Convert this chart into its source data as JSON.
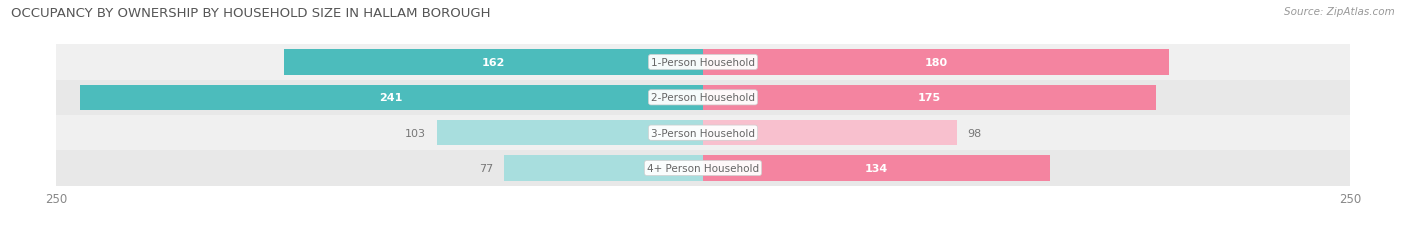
{
  "title": "OCCUPANCY BY OWNERSHIP BY HOUSEHOLD SIZE IN HALLAM BOROUGH",
  "source": "Source: ZipAtlas.com",
  "categories": [
    "1-Person Household",
    "2-Person Household",
    "3-Person Household",
    "4+ Person Household"
  ],
  "owner_values": [
    162,
    241,
    103,
    77
  ],
  "renter_values": [
    180,
    175,
    98,
    134
  ],
  "x_max": 250,
  "owner_color": "#4CBCBC",
  "renter_color": "#F484A0",
  "owner_color_light": "#A8DEDE",
  "renter_color_light": "#F8C0CE",
  "row_bg_colors": [
    "#F0F0F0",
    "#E8E8E8",
    "#F0F0F0",
    "#E8E8E8"
  ],
  "title_fontsize": 9.5,
  "bar_height": 0.72,
  "figsize": [
    14.06,
    2.32
  ],
  "dpi": 100
}
